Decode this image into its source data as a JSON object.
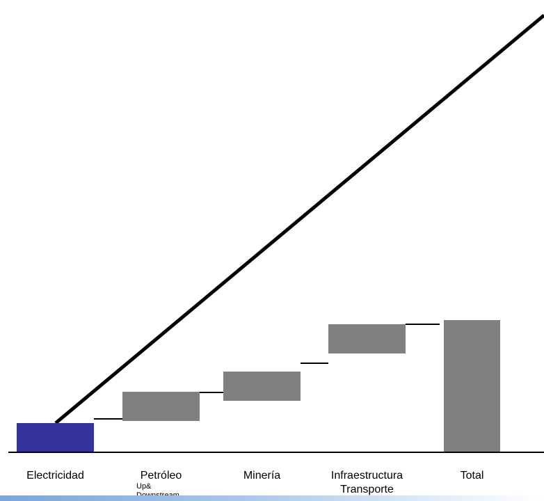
{
  "chart_data": {
    "type": "waterfall",
    "categories": [
      {
        "label": "Electricidad",
        "sublabel": ""
      },
      {
        "label": "Petróleo",
        "sublabel": "Up&\nDownstream"
      },
      {
        "label": "Minería",
        "sublabel": ""
      },
      {
        "label": "Infraestructura\nTransporte",
        "sublabel": ""
      },
      {
        "label": "Total",
        "sublabel": ""
      }
    ],
    "segments": [
      {
        "category": "Electricidad",
        "start": 0,
        "end": 42,
        "color": "#333399"
      },
      {
        "category": "Petróleo",
        "start": 45,
        "end": 87,
        "color": "#808080"
      },
      {
        "category": "Minería",
        "start": 74,
        "end": 116,
        "color": "#808080"
      },
      {
        "category": "Infraestructura\nTransporte",
        "start": 142,
        "end": 184,
        "color": "#808080"
      },
      {
        "category": "Total",
        "start": 0,
        "end": 190,
        "color": "#808080"
      }
    ],
    "connector_levels": [
      48,
      86,
      128,
      184
    ],
    "trend_line": {
      "from": [
        0.5,
        42
      ],
      "to": [
        5.6,
        630
      ]
    },
    "ylim": [
      0,
      630
    ],
    "grid": false,
    "title": "",
    "xlabel": "",
    "ylabel": ""
  }
}
